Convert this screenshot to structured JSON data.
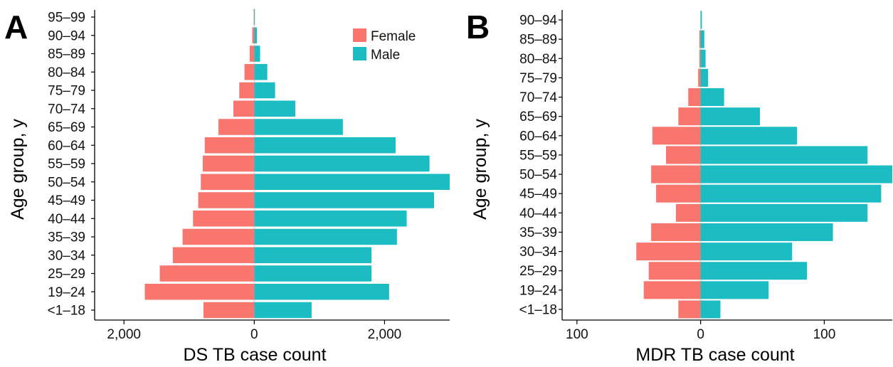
{
  "colors": {
    "female": "#F8766D",
    "male": "#1BBCC2",
    "axis": "#000000"
  },
  "chart_data": [
    {
      "type": "bar",
      "orientation": "horizontal-population-pyramid",
      "panel_label": "A",
      "xlabel": "DS TB case count",
      "ylabel": "Age group, y",
      "categories": [
        "<1–18",
        "19–24",
        "25–29",
        "30–34",
        "35–39",
        "40–44",
        "45–49",
        "50–54",
        "55–59",
        "60–64",
        "65–69",
        "70–74",
        "75–79",
        "80–84",
        "85–89",
        "90–94",
        "95–99"
      ],
      "series": [
        {
          "name": "Female",
          "values": [
            780,
            1680,
            1450,
            1250,
            1100,
            940,
            860,
            820,
            790,
            760,
            550,
            320,
            230,
            150,
            70,
            30,
            8
          ]
        },
        {
          "name": "Male",
          "values": [
            880,
            2070,
            1800,
            1800,
            2190,
            2340,
            2760,
            3000,
            2690,
            2170,
            1360,
            630,
            320,
            200,
            90,
            40,
            10
          ]
        }
      ],
      "xlim": [
        -2450,
        3000
      ],
      "xticks": [
        -2000,
        0,
        2000
      ],
      "xtick_labels": [
        "2,000",
        "0",
        "2,000"
      ],
      "legend": {
        "position": "top-right",
        "entries": [
          "Female",
          "Male"
        ]
      }
    },
    {
      "type": "bar",
      "orientation": "horizontal-population-pyramid",
      "panel_label": "B",
      "xlabel": "MDR TB case count",
      "ylabel": "Age group, y",
      "categories": [
        "<1–18",
        "19–24",
        "25–29",
        "30–34",
        "35–39",
        "40–44",
        "45–49",
        "50–54",
        "55–59",
        "60–64",
        "65–69",
        "70–74",
        "75–79",
        "80–84",
        "85–89",
        "90–94"
      ],
      "series": [
        {
          "name": "Female",
          "values": [
            18,
            46,
            42,
            52,
            40,
            20,
            36,
            40,
            28,
            39,
            18,
            10,
            2,
            1,
            1,
            0
          ]
        },
        {
          "name": "Male",
          "values": [
            16,
            55,
            86,
            74,
            107,
            135,
            146,
            155,
            135,
            78,
            48,
            19,
            6,
            4,
            3,
            1
          ]
        }
      ],
      "xlim": [
        -112,
        155
      ],
      "xticks": [
        -100,
        0,
        100
      ],
      "xtick_labels": [
        "100",
        "0",
        "100"
      ]
    }
  ]
}
